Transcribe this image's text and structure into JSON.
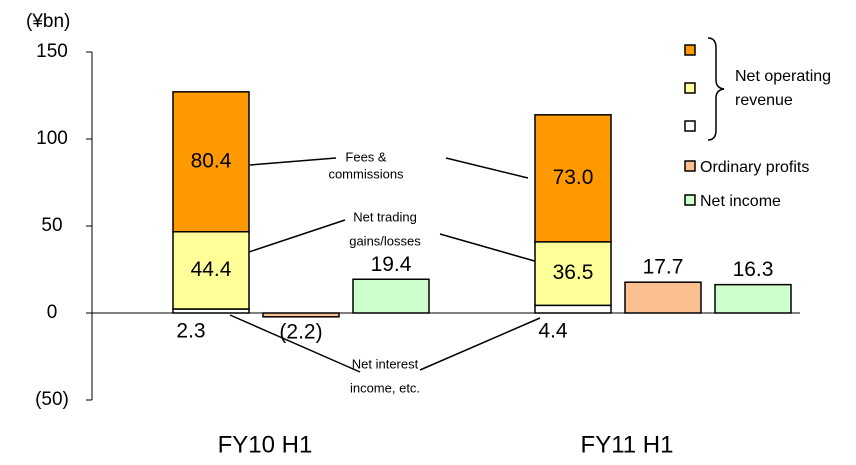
{
  "chart_data": {
    "type": "bar",
    "unit_label": "(¥bn)",
    "categories": [
      "FY10 H1",
      "FY11 H1"
    ],
    "ylim": [
      -50,
      150
    ],
    "yticks": [
      {
        "value": -50,
        "label": "(50)"
      },
      0,
      50,
      100,
      150
    ],
    "stacked_series": [
      {
        "color": "#ffffff",
        "values": [
          2.3,
          4.4
        ]
      },
      {
        "color": "#ffff99",
        "values": [
          44.4,
          36.5
        ]
      },
      {
        "color": "#ff9900",
        "values": [
          80.4,
          73.0
        ],
        "value_labels": [
          "80.4",
          "73.0"
        ]
      }
    ],
    "series": [
      {
        "name": "Ordinary profits",
        "color": "#fac090",
        "values": [
          -2.2,
          17.7
        ],
        "value_labels": [
          "(2.2)",
          "17.7"
        ]
      },
      {
        "name": "Net income",
        "color": "#ccffcc",
        "values": [
          19.4,
          16.3
        ]
      }
    ],
    "legend_group": [
      "Net operating",
      "revenue"
    ],
    "annotations": [
      {
        "lines": [
          "Net interest",
          "income, etc."
        ]
      },
      {
        "lines": [
          "Net trading",
          "gains/losses"
        ]
      },
      {
        "lines": [
          "Fees &",
          "commissions"
        ]
      }
    ]
  }
}
